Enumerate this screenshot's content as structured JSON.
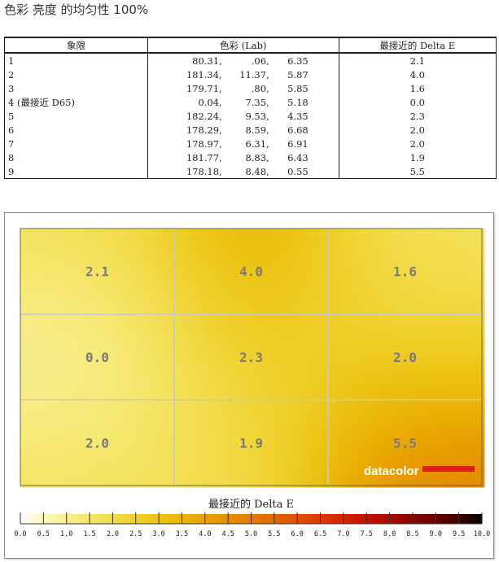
{
  "page_title": "色彩 亮度 的均匀性 100%",
  "table": {
    "headers": [
      "象限",
      "色彩 (Lab)",
      "最接近的 Delta E"
    ],
    "rows": [
      {
        "q": "1",
        "l": "80.31,",
        "a": ".06,",
        "b": "6.35",
        "de": "2.1"
      },
      {
        "q": "2",
        "l": "181.34,",
        "a": "11.37,",
        "b": "5.87",
        "de": "4.0"
      },
      {
        "q": "3",
        "l": "179.71,",
        "a": ".80,",
        "b": "5.85",
        "de": "1.6"
      },
      {
        "q": "4 (最接近 D65)",
        "l": "0.04,",
        "a": "7.35,",
        "b": "5.18",
        "de": "0.0"
      },
      {
        "q": "5",
        "l": "182.24,",
        "a": "9.53,",
        "b": "4.35",
        "de": "2.3"
      },
      {
        "q": "6",
        "l": "178.29,",
        "a": "8.59,",
        "b": "6.68",
        "de": "2.0"
      },
      {
        "q": "7",
        "l": "178.97,",
        "a": "6.31,",
        "b": "6.91",
        "de": "2.0"
      },
      {
        "q": "8",
        "l": "181.77,",
        "a": "8.83,",
        "b": "6.43",
        "de": "1.9"
      },
      {
        "q": "9",
        "l": "178.18,",
        "a": "8.48,",
        "b": "0.55",
        "de": "5.5"
      }
    ]
  },
  "chart_data": {
    "type": "heatmap",
    "grid": [
      3,
      3
    ],
    "values": [
      [
        2.1,
        4.0,
        1.6
      ],
      [
        0.0,
        2.3,
        2.0
      ],
      [
        2.0,
        1.9,
        5.5
      ]
    ],
    "cell_labels": [
      [
        "2.1",
        "4.0",
        "1.6"
      ],
      [
        "0.0",
        "2.3",
        "2.0"
      ],
      [
        "2.0",
        "1.9",
        "5.5"
      ]
    ],
    "xlabel": "最接近的 Delta E",
    "colorbar_range": [
      0,
      10
    ],
    "colorbar_ticks": [
      "0.0",
      "0.5",
      "1.0",
      "1.5",
      "2.0",
      "2.5",
      "3.0",
      "3.5",
      "4.0",
      "4.5",
      "5.0",
      "5.5",
      "6.0",
      "6.5",
      "7.0",
      "7.5",
      "8.0",
      "8.5",
      "9.0",
      "9.5",
      "10.0"
    ],
    "colorbar_colors": [
      "#ffffff",
      "#fbf6c0",
      "#f8ef90",
      "#f5e66a",
      "#f2dc4a",
      "#efd12c",
      "#ecc414",
      "#eab406",
      "#e8a200",
      "#e68f00",
      "#e47c00",
      "#e26600",
      "#e05000",
      "#de3a00",
      "#d42400",
      "#c41200",
      "#a80a00",
      "#8a0400",
      "#680000",
      "#3a0000",
      "#000000"
    ],
    "logo": "datacolor",
    "grid_lines": true
  }
}
